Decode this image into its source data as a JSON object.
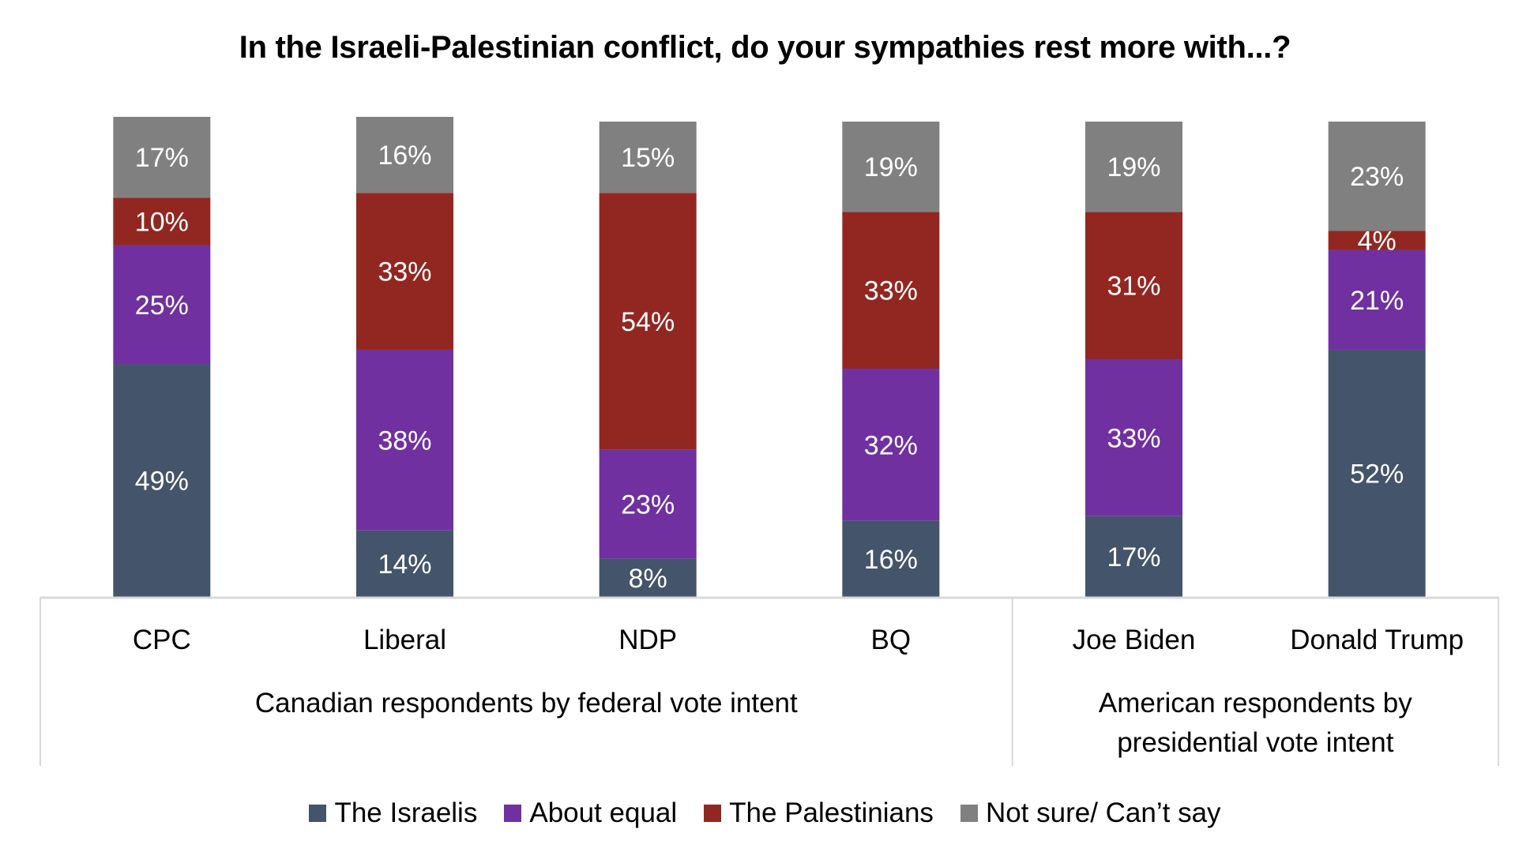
{
  "chart_data": {
    "type": "bar",
    "stacked": true,
    "title": "In the Israeli-Palestinian conflict, do your sympathies rest more with...?",
    "categories": [
      "CPC",
      "Liberal",
      "NDP",
      "BQ",
      "Joe Biden",
      "Donald Trump"
    ],
    "groups": [
      {
        "label": "Canadian respondents by federal vote intent",
        "categories": [
          "CPC",
          "Liberal",
          "NDP",
          "BQ"
        ]
      },
      {
        "label": "American respondents by presidential vote intent",
        "label_lines": [
          "American respondents by",
          "presidential vote intent"
        ],
        "categories": [
          "Joe Biden",
          "Donald Trump"
        ]
      }
    ],
    "series": [
      {
        "name": "The Israelis",
        "color": "#44546a",
        "values": [
          49,
          14,
          8,
          16,
          17,
          52
        ]
      },
      {
        "name": "About equal",
        "color": "#7030a0",
        "values": [
          25,
          38,
          23,
          32,
          33,
          21
        ]
      },
      {
        "name": "The Palestinians",
        "color": "#922721",
        "values": [
          10,
          33,
          54,
          33,
          31,
          4
        ]
      },
      {
        "name": "Not sure/ Can’t say",
        "color": "#808080",
        "values": [
          17,
          16,
          15,
          19,
          19,
          23
        ]
      }
    ],
    "value_suffix": "%",
    "xlabel": "",
    "ylabel": "",
    "ylim": [
      0,
      100
    ],
    "grid": false,
    "legend_position": "bottom"
  }
}
